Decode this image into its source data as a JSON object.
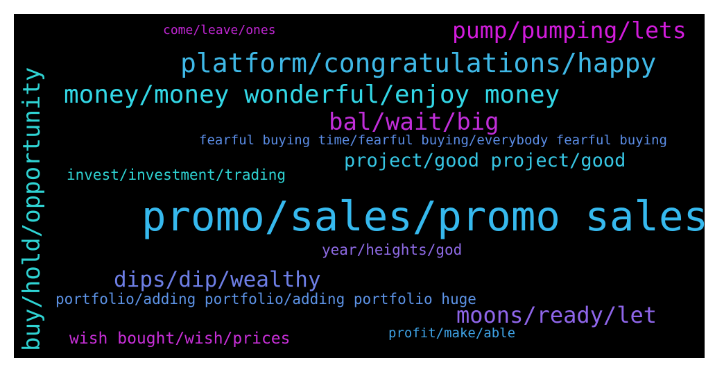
{
  "wordcloud": {
    "background": "#000000",
    "words": [
      {
        "text": "come/leave/ones",
        "color": "#c026d3"
      },
      {
        "text": "pump/pumping/lets",
        "color": "#d21cdc"
      },
      {
        "text": "platform/congratulations/happy",
        "color": "#3fb8e6"
      },
      {
        "text": "money/money wonderful/enjoy money",
        "color": "#33d7e6"
      },
      {
        "text": "bal/wait/big",
        "color": "#c12ed9"
      },
      {
        "text": "fearful buying time/fearful buying/everybody fearful buying",
        "color": "#5b8de6"
      },
      {
        "text": "project/good project/good",
        "color": "#37c6e3"
      },
      {
        "text": "invest/investment/trading",
        "color": "#2fd3d3"
      },
      {
        "text": "promo/sales/promo sales",
        "color": "#36b9ee"
      },
      {
        "text": "year/heights/god",
        "color": "#8f6be6"
      },
      {
        "text": "dips/dip/wealthy",
        "color": "#6e7fe6"
      },
      {
        "text": "portfolio/adding portfolio/adding portfolio huge",
        "color": "#5d93e6"
      },
      {
        "text": "moons/ready/let",
        "color": "#8f66ea"
      },
      {
        "text": "wish bought/wish/prices",
        "color": "#c82fd8"
      },
      {
        "text": "profit/make/able",
        "color": "#3fa3e6"
      },
      {
        "text": "buy/hold/opportunity",
        "color": "#2fd3d3"
      }
    ]
  }
}
